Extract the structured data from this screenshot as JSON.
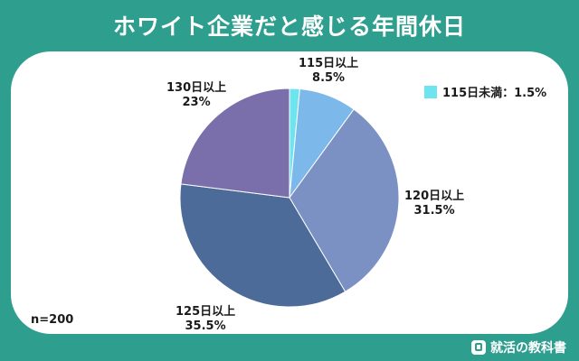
{
  "title": "ホワイト企業だと感じる年間休日",
  "note": "n=200",
  "brand": "就活の教科書",
  "chart_data": {
    "type": "pie",
    "title": "ホワイト企業だと感じる年間休日",
    "start_angle_deg": 0,
    "direction": "clockwise",
    "slices": [
      {
        "name": "115日未満",
        "value": 1.5,
        "label": "1.5%",
        "color": "#6ee4ee"
      },
      {
        "name": "115日以上",
        "value": 8.5,
        "label": "8.5%",
        "color": "#7db8ea"
      },
      {
        "name": "120日以上",
        "value": 31.5,
        "label": "31.5%",
        "color": "#7b91c4"
      },
      {
        "name": "125日以上",
        "value": 35.5,
        "label": "35.5%",
        "color": "#4d6b98"
      },
      {
        "name": "130日以上",
        "value": 23,
        "label": "23%",
        "color": "#7b6fab"
      }
    ],
    "legend": [
      {
        "text": "115日未満：1.5%",
        "color": "#6ee4ee"
      }
    ],
    "legend_position": "top-right"
  }
}
